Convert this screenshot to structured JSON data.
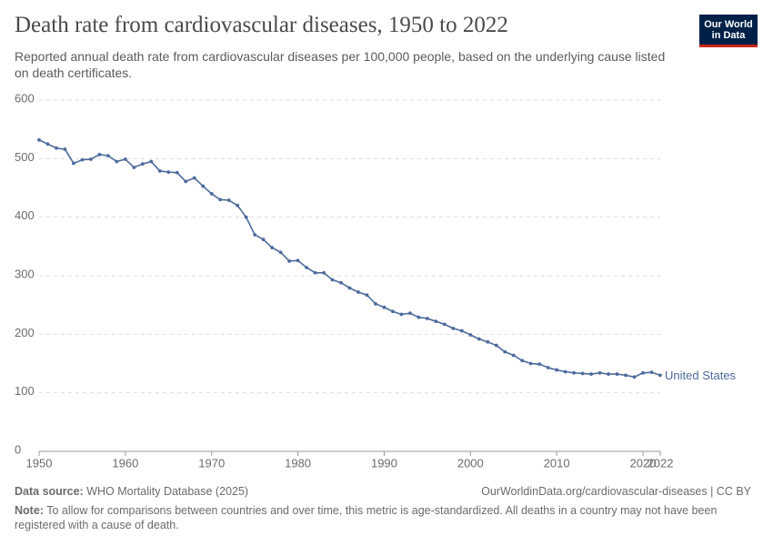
{
  "chart_data": {
    "type": "line",
    "title": "Death rate from cardiovascular diseases, 1950 to 2022",
    "subtitle": "Reported annual death rate from cardiovascular diseases per 100,000 people, based on the underlying cause listed on death certificates.",
    "logo": [
      "Our World",
      "in Data"
    ],
    "x": [
      1950,
      1951,
      1952,
      1953,
      1954,
      1955,
      1956,
      1957,
      1958,
      1959,
      1960,
      1961,
      1962,
      1963,
      1964,
      1965,
      1966,
      1967,
      1968,
      1969,
      1970,
      1971,
      1972,
      1973,
      1974,
      1975,
      1976,
      1977,
      1978,
      1979,
      1980,
      1981,
      1982,
      1983,
      1984,
      1985,
      1986,
      1987,
      1988,
      1989,
      1990,
      1991,
      1992,
      1993,
      1994,
      1995,
      1996,
      1997,
      1998,
      1999,
      2000,
      2001,
      2002,
      2003,
      2004,
      2005,
      2006,
      2007,
      2008,
      2009,
      2010,
      2011,
      2012,
      2013,
      2014,
      2015,
      2016,
      2017,
      2018,
      2019,
      2020,
      2021,
      2022
    ],
    "series": [
      {
        "name": "United States",
        "color": "#4c6a9c",
        "values": [
          532,
          525,
          518,
          516,
          492,
          498,
          499,
          507,
          505,
          495,
          499,
          485,
          491,
          495,
          479,
          477,
          476,
          461,
          467,
          453,
          440,
          430,
          429,
          420,
          400,
          370,
          362,
          348,
          340,
          325,
          326,
          314,
          305,
          305,
          293,
          288,
          279,
          272,
          267,
          252,
          246,
          239,
          234,
          236,
          229,
          227,
          222,
          217,
          210,
          206,
          199,
          192,
          187,
          181,
          170,
          164,
          155,
          150,
          149,
          143,
          139,
          136,
          134,
          133,
          132,
          134,
          132,
          132,
          130,
          127,
          134,
          135,
          130
        ]
      }
    ],
    "xlim": [
      1950,
      2022
    ],
    "xticks": [
      1950,
      1960,
      1970,
      1980,
      1990,
      2000,
      2010,
      2020,
      2022
    ],
    "ylim": [
      0,
      600
    ],
    "yticks": [
      0,
      100,
      200,
      300,
      400,
      500,
      600
    ],
    "grid": true,
    "source_label": "Data source:",
    "source": "WHO Mortality Database (2025)",
    "url": "OurWorldinData.org/cardiovascular-diseases | CC BY",
    "note_label": "Note:",
    "note": "To allow for comparisons between countries and over time, this metric is age-standardized. All deaths in a country may not have been registered with a cause of death."
  }
}
